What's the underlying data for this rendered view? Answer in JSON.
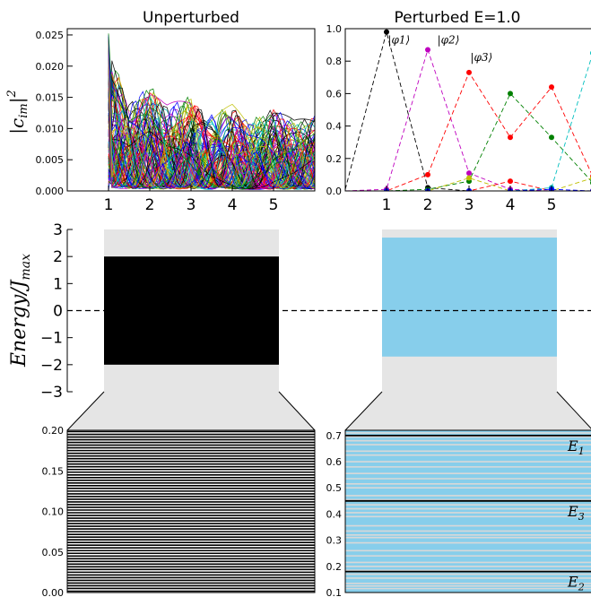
{
  "chart_data": [
    {
      "id": "unperturbed_coeffs",
      "type": "line",
      "title": "Unperturbed",
      "ylabel": "|c_{im}|^2",
      "xlim": [
        0,
        6
      ],
      "ylim": [
        0,
        0.026
      ],
      "x_ticks": [
        "1",
        "2",
        "3",
        "4",
        "5"
      ],
      "y_ticks": [
        "0.000",
        "0.005",
        "0.010",
        "0.015",
        "0.020",
        "0.025"
      ],
      "n_series": 100,
      "envelope_x": [
        1,
        1.5,
        2,
        2.4,
        3,
        3.4,
        4,
        4.4,
        5,
        5.5,
        6
      ],
      "envelope_y": [
        0.025,
        0.0155,
        0.0185,
        0.0148,
        0.0165,
        0.013,
        0.0148,
        0.012,
        0.0145,
        0.012,
        0.0132
      ]
    },
    {
      "id": "perturbed_coeffs",
      "type": "line",
      "title": "Perturbed E=1.0",
      "xlim": [
        0,
        6
      ],
      "ylim": [
        0,
        1.0
      ],
      "x_ticks": [
        "1",
        "2",
        "3",
        "4",
        "5"
      ],
      "y_ticks": [
        "0.0",
        "0.2",
        "0.4",
        "0.6",
        "0.8",
        "1.0"
      ],
      "series": [
        {
          "name": "|φ1⟩",
          "color": "#000000",
          "x": [
            0,
            1,
            2,
            3,
            4,
            5,
            6
          ],
          "y": [
            0.01,
            0.98,
            0.02,
            0.0,
            0.0,
            0.0,
            0.0
          ]
        },
        {
          "name": "|φ2⟩",
          "color": "#bf00bf",
          "x": [
            0,
            1,
            2,
            3,
            4,
            5,
            6
          ],
          "y": [
            0.0,
            0.01,
            0.87,
            0.11,
            0.01,
            0.0,
            0.0
          ]
        },
        {
          "name": "|φ3⟩",
          "color": "#ff0000",
          "x": [
            0,
            1,
            2,
            3,
            4,
            5,
            6
          ],
          "y": [
            0.0,
            0.0,
            0.1,
            0.73,
            0.33,
            0.64,
            0.09
          ]
        },
        {
          "color": "#ff0000",
          "x": [
            1,
            2,
            3,
            4,
            5,
            6
          ],
          "y": [
            0.0,
            0.0,
            0.0,
            0.06,
            0.0,
            0.0
          ]
        },
        {
          "color": "#008000",
          "x": [
            0,
            1,
            2,
            3,
            4,
            5,
            6
          ],
          "y": [
            0.0,
            0.0,
            0.01,
            0.06,
            0.6,
            0.33,
            0.05
          ]
        },
        {
          "color": "#bfbf00",
          "x": [
            1,
            2,
            3,
            4,
            5,
            6
          ],
          "y": [
            0.0,
            0.0,
            0.08,
            0.0,
            0.0,
            0.08
          ]
        },
        {
          "color": "#00bfbf",
          "x": [
            1,
            2,
            3,
            4,
            5,
            6
          ],
          "y": [
            0.0,
            0.0,
            0.0,
            0.0,
            0.02,
            0.85
          ]
        },
        {
          "color": "#0000ff",
          "x": [
            1,
            2,
            3,
            4,
            5,
            6
          ],
          "y": [
            0.0,
            0.0,
            0.0,
            0.0,
            0.01,
            0.0
          ]
        }
      ],
      "labels": [
        {
          "text": "|φ1⟩",
          "x": 1.3,
          "y": 0.91
        },
        {
          "text": "|φ2⟩",
          "x": 2.5,
          "y": 0.91
        },
        {
          "text": "|φ3⟩",
          "x": 3.3,
          "y": 0.8
        }
      ]
    },
    {
      "id": "energy_band",
      "type": "bar",
      "ylabel": "Energy/J_max",
      "ylim": [
        -3,
        3
      ],
      "y_ticks": [
        "−3",
        "−2",
        "−1",
        "0",
        "1",
        "2",
        "3"
      ],
      "background": "#e5e5e5",
      "left_band": {
        "bottom": -2.0,
        "top": 2.0,
        "color": "#000000"
      },
      "right_band": {
        "bottom": -1.7,
        "top": 2.7,
        "color": "#87ceeb"
      },
      "zero_line": "dashed"
    },
    {
      "id": "unperturbed_levels",
      "type": "line",
      "ylim": [
        0,
        0.2
      ],
      "y_ticks": [
        "0.00",
        "0.05",
        "0.10",
        "0.15",
        "0.20"
      ],
      "n_levels": 60,
      "level_color": "#000000",
      "background": "#ffffff"
    },
    {
      "id": "perturbed_levels",
      "type": "line",
      "ylim": [
        0.1,
        0.72
      ],
      "y_ticks": [
        "0.1",
        "0.2",
        "0.3",
        "0.4",
        "0.5",
        "0.6",
        "0.7"
      ],
      "background": "#87ceeb",
      "grey_levels": [
        0.115,
        0.125,
        0.135,
        0.155,
        0.17,
        0.185,
        0.2,
        0.215,
        0.24,
        0.26,
        0.29,
        0.31,
        0.32,
        0.335,
        0.355,
        0.39,
        0.405,
        0.42,
        0.435,
        0.455,
        0.47,
        0.5,
        0.515,
        0.535,
        0.555,
        0.58,
        0.6,
        0.625,
        0.64,
        0.665,
        0.68,
        0.695,
        0.71
      ],
      "black_levels": [
        {
          "label": "E_1",
          "y": 0.7
        },
        {
          "label": "E_3",
          "y": 0.45
        },
        {
          "label": "E_2",
          "y": 0.18
        }
      ]
    }
  ]
}
